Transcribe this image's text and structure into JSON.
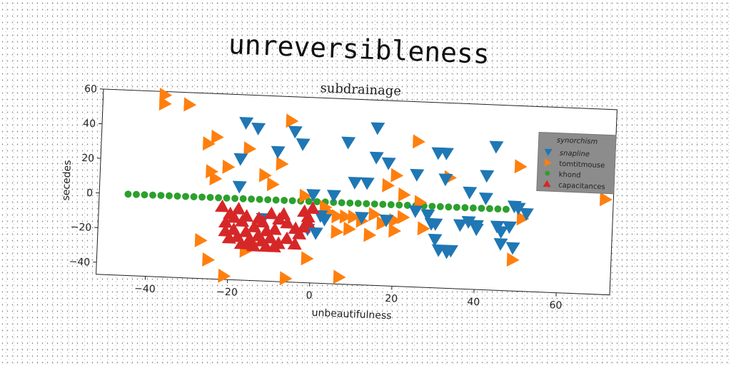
{
  "suptitle": "unreversibleness",
  "chart_data": {
    "type": "scatter",
    "title": "subdrainage",
    "xlabel": "unbeautifulness",
    "ylabel": "secedes",
    "xlim": [
      -52,
      73
    ],
    "ylim": [
      -47,
      60
    ],
    "xticks": [
      -40,
      -20,
      0,
      20,
      40,
      60
    ],
    "yticks": [
      -40,
      -20,
      0,
      20,
      40,
      60
    ],
    "grid": false,
    "legend": {
      "title": "synorchism",
      "placement": "upper-right"
    },
    "series": [
      {
        "name": "snapline",
        "marker": "triangle-down",
        "color": "#1f77b4",
        "points": [
          [
            -17,
            44
          ],
          [
            -14,
            41
          ],
          [
            -9,
            28
          ],
          [
            -5,
            40
          ],
          [
            -3,
            33
          ],
          [
            8,
            35
          ],
          [
            15,
            44
          ],
          [
            15,
            27
          ],
          [
            18,
            24
          ],
          [
            10,
            12
          ],
          [
            13,
            12
          ],
          [
            5,
            4
          ],
          [
            0,
            4
          ],
          [
            -18,
            23
          ],
          [
            -18,
            7
          ],
          [
            -12,
            -11
          ],
          [
            2,
            -8
          ],
          [
            12,
            -8
          ],
          [
            18,
            -9
          ],
          [
            25,
            -3
          ],
          [
            28,
            -5
          ],
          [
            30,
            -10
          ],
          [
            30,
            -19
          ],
          [
            31,
            -25
          ],
          [
            33,
            -26
          ],
          [
            34,
            -25
          ],
          [
            29,
            -10
          ],
          [
            36,
            -10
          ],
          [
            38,
            -8
          ],
          [
            40,
            -10
          ],
          [
            40,
            -12
          ],
          [
            45,
            -10
          ],
          [
            46,
            -13
          ],
          [
            46,
            -20
          ],
          [
            49,
            -22
          ],
          [
            48,
            -10
          ],
          [
            50,
            1
          ],
          [
            52,
            -2
          ],
          [
            49,
            2
          ],
          [
            42,
            6
          ],
          [
            42,
            19
          ],
          [
            38,
            9
          ],
          [
            32,
            16
          ],
          [
            25,
            18
          ],
          [
            30,
            31
          ],
          [
            32,
            31
          ],
          [
            44,
            36
          ],
          [
            -1,
            -16
          ],
          [
            1,
            -18
          ],
          [
            3,
            -10
          ]
        ]
      },
      {
        "name": "tomtitmouse",
        "marker": "triangle-right",
        "color": "#ff7f0e",
        "points": [
          [
            -37,
            58
          ],
          [
            -37,
            53
          ],
          [
            -31,
            53
          ],
          [
            -24,
            35
          ],
          [
            -26,
            31
          ],
          [
            -16,
            29
          ],
          [
            -21,
            18
          ],
          [
            -25,
            15
          ],
          [
            -24,
            11
          ],
          [
            -8,
            21
          ],
          [
            -12,
            14
          ],
          [
            -10,
            9
          ],
          [
            -6,
            46
          ],
          [
            -2,
            3
          ],
          [
            3,
            -3
          ],
          [
            4,
            -6
          ],
          [
            6,
            -8
          ],
          [
            8,
            -8
          ],
          [
            10,
            -8
          ],
          [
            12,
            -10
          ],
          [
            15,
            -6
          ],
          [
            17,
            -11
          ],
          [
            20,
            -9
          ],
          [
            22,
            -7
          ],
          [
            20,
            -15
          ],
          [
            9,
            -15
          ],
          [
            6,
            -17
          ],
          [
            14,
            -18
          ],
          [
            27,
            -13
          ],
          [
            26,
            2
          ],
          [
            22,
            6
          ],
          [
            18,
            11
          ],
          [
            20,
            17
          ],
          [
            25,
            37
          ],
          [
            33,
            17
          ],
          [
            50,
            25
          ],
          [
            71,
            8
          ],
          [
            51,
            -5
          ],
          [
            49,
            -29
          ],
          [
            7,
            -43
          ],
          [
            -6,
            -45
          ],
          [
            -21,
            -45
          ],
          [
            -25,
            -36
          ],
          [
            -27,
            -25
          ],
          [
            -1,
            -33
          ],
          [
            -14,
            -26
          ],
          [
            -16,
            -30
          ]
        ]
      },
      {
        "name": "khond",
        "marker": "circle",
        "color": "#2ca02c",
        "points": [
          [
            -45,
            0
          ],
          [
            -43,
            0
          ],
          [
            -41,
            0
          ],
          [
            -39,
            0
          ],
          [
            -37,
            0
          ],
          [
            -35,
            0
          ],
          [
            -33,
            0
          ],
          [
            -31,
            0
          ],
          [
            -29,
            0
          ],
          [
            -27,
            0
          ],
          [
            -25,
            0
          ],
          [
            -23,
            0
          ],
          [
            -21,
            0
          ],
          [
            -19,
            0
          ],
          [
            -17,
            0
          ],
          [
            -15,
            0
          ],
          [
            -13,
            0
          ],
          [
            -11,
            0
          ],
          [
            -9,
            0
          ],
          [
            -7,
            0
          ],
          [
            -5,
            0
          ],
          [
            -3,
            0
          ],
          [
            -1,
            0
          ],
          [
            1,
            0
          ],
          [
            3,
            0
          ],
          [
            5,
            0
          ],
          [
            7,
            0
          ],
          [
            9,
            0
          ],
          [
            11,
            0
          ],
          [
            13,
            0
          ],
          [
            15,
            0
          ],
          [
            17,
            0
          ],
          [
            19,
            0
          ],
          [
            21,
            0
          ],
          [
            23,
            0
          ],
          [
            25,
            0
          ],
          [
            27,
            0
          ],
          [
            29,
            0
          ],
          [
            31,
            0
          ],
          [
            33,
            0
          ],
          [
            35,
            0
          ],
          [
            37,
            0
          ],
          [
            39,
            0
          ],
          [
            41,
            0
          ],
          [
            43,
            0
          ],
          [
            45,
            0
          ],
          [
            47,
            0
          ]
        ]
      },
      {
        "name": "capacitances",
        "marker": "triangle-up",
        "color": "#d62728",
        "points": [
          [
            -22,
            -5
          ],
          [
            -20,
            -9
          ],
          [
            -18,
            -6
          ],
          [
            -21,
            -14
          ],
          [
            -19,
            -18
          ],
          [
            -17,
            -13
          ],
          [
            -16,
            -19
          ],
          [
            -15,
            -23
          ],
          [
            -14,
            -16
          ],
          [
            -13,
            -21
          ],
          [
            -12,
            -24
          ],
          [
            -11,
            -18
          ],
          [
            -10,
            -22
          ],
          [
            -9,
            -17
          ],
          [
            -8,
            -11
          ],
          [
            -7,
            -8
          ],
          [
            -10,
            -8
          ],
          [
            -13,
            -11
          ],
          [
            -16,
            -10
          ],
          [
            -18,
            -22
          ],
          [
            -20,
            -23
          ],
          [
            -17,
            -26
          ],
          [
            -14,
            -27
          ],
          [
            -11,
            -27
          ],
          [
            -8,
            -25
          ],
          [
            -6,
            -22
          ],
          [
            -4,
            -25
          ],
          [
            -3,
            -19
          ],
          [
            -2,
            -15
          ],
          [
            -1,
            -9
          ],
          [
            -2,
            -6
          ],
          [
            0,
            -4
          ],
          [
            -1,
            -12
          ],
          [
            -4,
            -16
          ],
          [
            -15,
            -26
          ],
          [
            -9,
            -27
          ],
          [
            -6,
            -13
          ],
          [
            -12,
            -13
          ],
          [
            -19,
            -11
          ],
          [
            -21,
            -19
          ]
        ]
      }
    ]
  }
}
